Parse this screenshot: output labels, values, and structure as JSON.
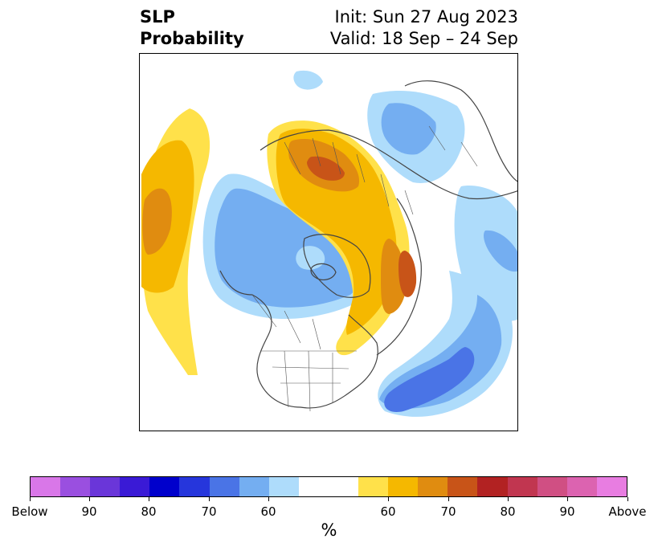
{
  "title": {
    "left_line1": "SLP",
    "left_line2": "Probability",
    "right_line1": "Init: Sun 27 Aug 2023",
    "right_line2": "Valid: 18 Sep – 24 Sep"
  },
  "colorbar": {
    "colors": [
      "#d977e8",
      "#9a4fe0",
      "#6a36d9",
      "#3a1ad6",
      "#0000cc",
      "#2636dc",
      "#4a74e6",
      "#74aef1",
      "#aedcfb",
      "#ffffff",
      "#ffe14a",
      "#f5b800",
      "#e08c10",
      "#c85418",
      "#b22222",
      "#c13650",
      "#d04f83",
      "#dc63b0",
      "#e87de1"
    ],
    "tick_labels": [
      "Below",
      "90",
      "80",
      "70",
      "60",
      "60",
      "70",
      "80",
      "90",
      "Above"
    ],
    "unit_label": "%"
  },
  "legend_colors": {
    "below_light": "#aedcfb",
    "below_mid": "#74aef1",
    "below_strong": "#4a74e6",
    "above_light": "#ffe14a",
    "above_mid": "#f5b800",
    "above_strong": "#e08c10",
    "above_stronger": "#c85418"
  }
}
